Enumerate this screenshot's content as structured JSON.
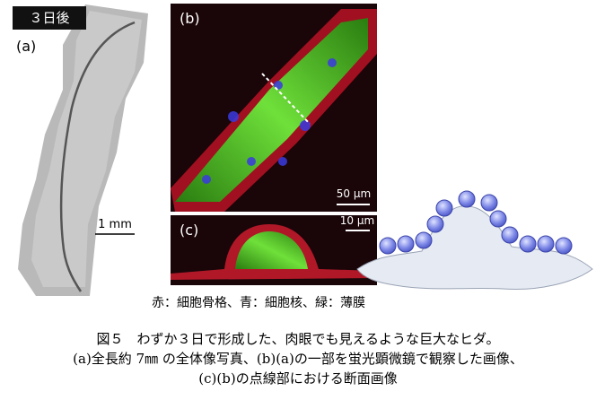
{
  "panel_a": {
    "badge": "３日後",
    "label": "(a)",
    "scale_bar": "1 mm"
  },
  "panel_b": {
    "label": "(b)",
    "scale_bar": "50 μm"
  },
  "panel_c": {
    "label": "(c)",
    "scale_bar": "10 μm"
  },
  "legend": "赤：細胞骨格、青：細胞核、緑：薄膜",
  "caption": {
    "lines": [
      "図５　わずか３日で形成した、肉眼でも見えるような巨大なヒダ。",
      "(a)全長約 7㎜ の全体像写真、(b)(a)の一部を蛍光顕微鏡で観察した画像、",
      "(c)(b)の点線部における断面画像"
    ]
  }
}
